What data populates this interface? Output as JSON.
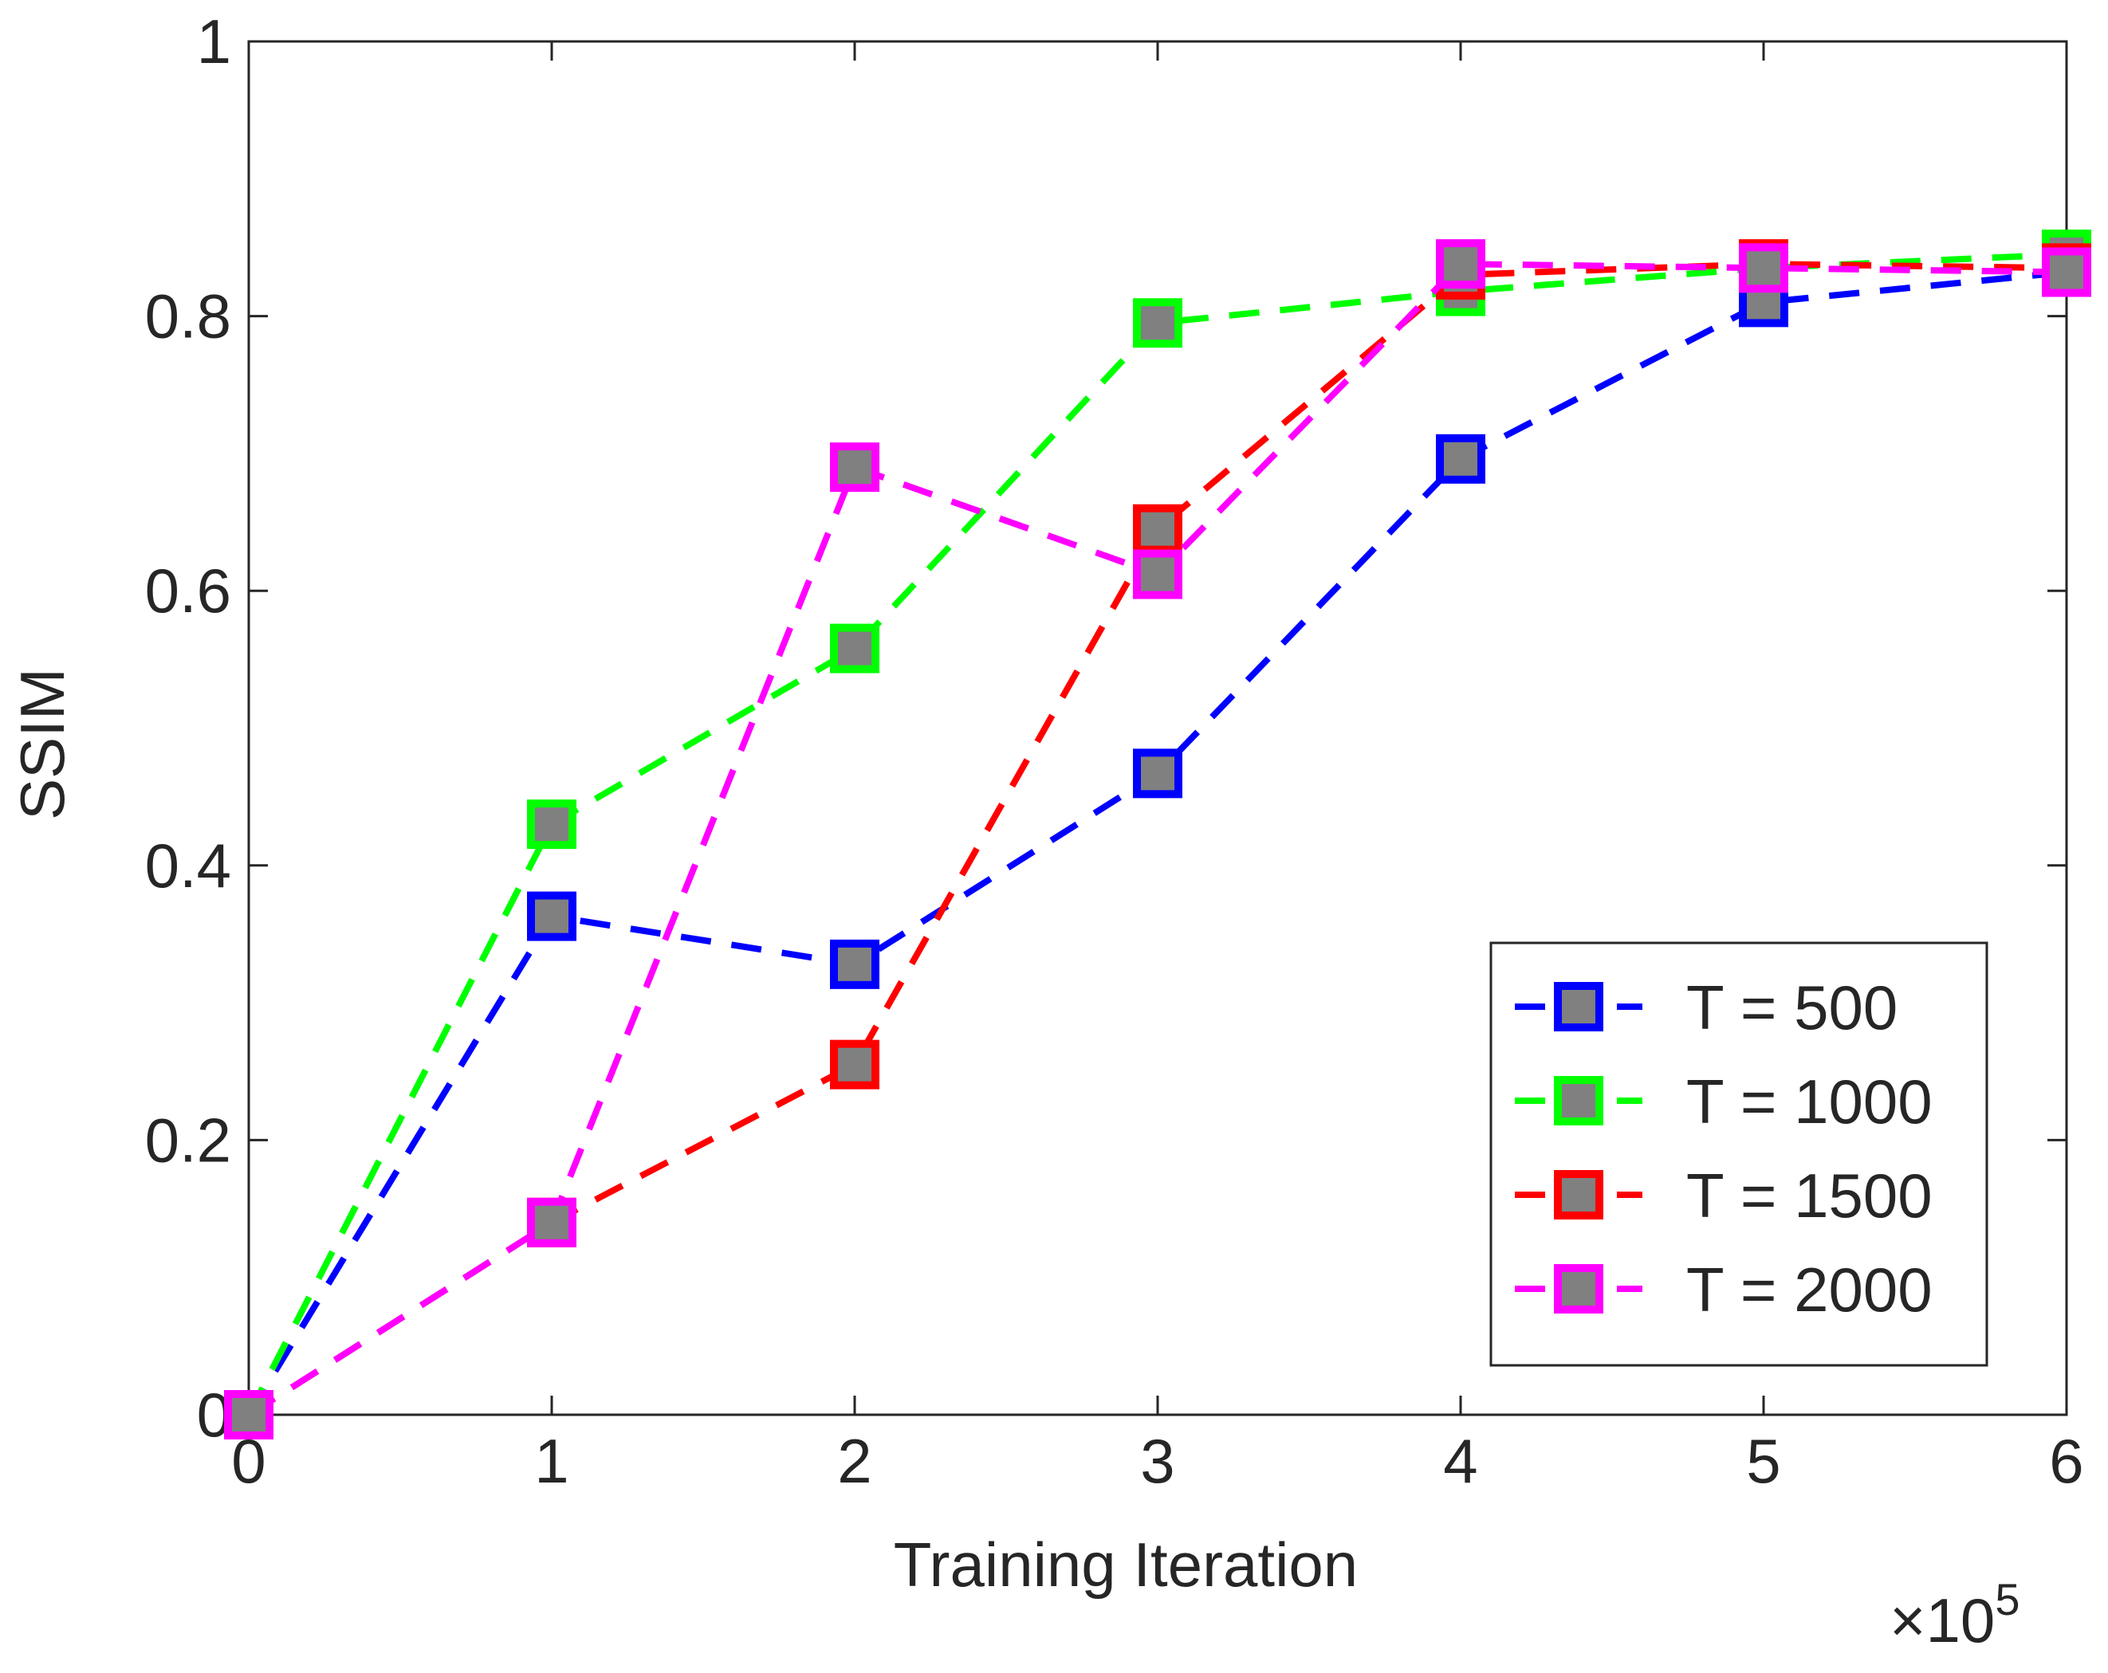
{
  "chart_data": {
    "type": "line",
    "title": "",
    "xlabel": "Training Iteration",
    "ylabel": "SSIM",
    "x_multiplier_label": "×10",
    "x_multiplier_exponent": "5",
    "x": [
      0,
      1,
      2,
      3,
      4,
      5,
      6
    ],
    "xlim": [
      0,
      6
    ],
    "ylim": [
      0,
      1
    ],
    "xticks": [
      0,
      1,
      2,
      3,
      4,
      5,
      6
    ],
    "xtick_labels": [
      "0",
      "1",
      "2",
      "3",
      "4",
      "5",
      "6"
    ],
    "yticks": [
      0,
      0.2,
      0.4,
      0.6,
      0.8,
      1
    ],
    "ytick_labels": [
      "0",
      "0.2",
      "0.4",
      "0.6",
      "0.8",
      "1"
    ],
    "grid": false,
    "legend_position": "bottom-right",
    "marker_fill": "#808080",
    "series": [
      {
        "name": "T = 500",
        "color": "#0000ff",
        "values": [
          0.0,
          0.363,
          0.328,
          0.467,
          0.696,
          0.81,
          0.832
        ]
      },
      {
        "name": "T = 1000",
        "color": "#00ff00",
        "values": [
          0.0,
          0.43,
          0.558,
          0.795,
          0.818,
          0.835,
          0.845
        ]
      },
      {
        "name": "T = 1500",
        "color": "#ff0000",
        "values": [
          0.0,
          0.14,
          0.255,
          0.645,
          0.83,
          0.838,
          0.835
        ]
      },
      {
        "name": "T = 2000",
        "color": "#ff00ff",
        "values": [
          0.0,
          0.14,
          0.69,
          0.612,
          0.838,
          0.835,
          0.832
        ]
      }
    ]
  }
}
